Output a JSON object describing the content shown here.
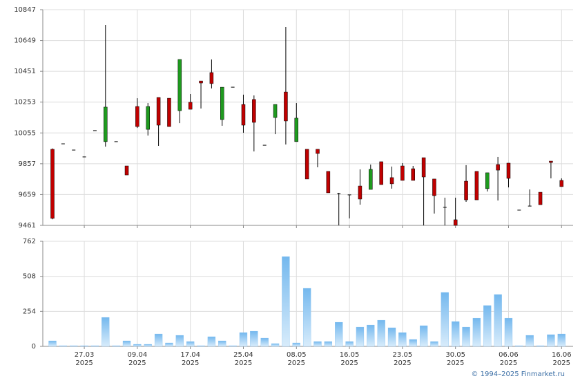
{
  "chart_data": [
    {
      "type": "candlestick",
      "up_color": "#1f9a1f",
      "down_color": "#c00000",
      "open": [
        9950,
        9985,
        9945,
        9901,
        10070,
        9999,
        9999,
        9843,
        10225,
        10078,
        10283,
        10278,
        10198,
        10252,
        10389,
        10443,
        10141,
        10349,
        10238,
        10270,
        9976,
        10154,
        10318,
        9999,
        9950,
        9950,
        9808,
        9665,
        9657,
        9714,
        9692,
        9870,
        9768,
        9843,
        9825,
        9896,
        9759,
        9577,
        9497,
        9745,
        9808,
        9697,
        9852,
        9861,
        9559,
        9585,
        9674,
        9874,
        9750
      ],
      "high": [
        9955,
        9985,
        9945,
        9901,
        10070,
        10749,
        9999,
        9843,
        10278,
        10247,
        10283,
        10278,
        10527,
        10305,
        10389,
        10527,
        10349,
        10349,
        10301,
        10296,
        9976,
        10238,
        10736,
        10247,
        9950,
        9950,
        9808,
        9670,
        9657,
        9821,
        9852,
        9870,
        9839,
        9861,
        9843,
        9896,
        9759,
        9639,
        9639,
        9848,
        9808,
        9799,
        9901,
        9861,
        9559,
        9692,
        9674,
        9874,
        9763
      ],
      "low": [
        9500,
        9985,
        9945,
        9901,
        10070,
        9967,
        9999,
        9785,
        10087,
        10038,
        9972,
        10096,
        10118,
        10207,
        10212,
        10341,
        10101,
        10349,
        10056,
        9936,
        9976,
        10047,
        9981,
        9999,
        9759,
        9834,
        9670,
        9461,
        9506,
        9594,
        9692,
        9723,
        9697,
        9750,
        9750,
        9461,
        9537,
        9461,
        9461,
        9612,
        9625,
        9679,
        9621,
        9705,
        9559,
        9585,
        9594,
        9763,
        9710
      ],
      "close": [
        9506,
        9985,
        9945,
        9901,
        10070,
        10221,
        9999,
        9785,
        10096,
        10225,
        10105,
        10096,
        10527,
        10207,
        10376,
        10372,
        10349,
        10349,
        10105,
        10123,
        9976,
        10238,
        10132,
        10150,
        9759,
        9923,
        9670,
        9665,
        9657,
        9630,
        9821,
        9723,
        9728,
        9750,
        9750,
        9772,
        9652,
        9577,
        9461,
        9625,
        9625,
        9799,
        9816,
        9763,
        9559,
        9585,
        9594,
        9865,
        9710
      ],
      "ylim": [
        9461,
        10847
      ],
      "yticks": [
        9461,
        9659,
        9857,
        10055,
        10253,
        10451,
        10649,
        10847
      ],
      "grid": true
    },
    {
      "type": "bar",
      "color": "#7dbdf0",
      "categories": [
        null,
        null,
        null,
        "27.03",
        null,
        null,
        null,
        null,
        "09.04",
        null,
        null,
        null,
        null,
        "17.04",
        null,
        null,
        null,
        null,
        "25.04",
        null,
        null,
        null,
        null,
        "08.05",
        null,
        null,
        null,
        null,
        "16.05",
        null,
        null,
        null,
        null,
        "23.05",
        null,
        null,
        null,
        null,
        "30.05",
        null,
        null,
        null,
        null,
        "06.06",
        null,
        null,
        null,
        null,
        "16.06"
      ],
      "category_years": [
        null,
        null,
        null,
        "2025",
        null,
        null,
        null,
        null,
        "2025",
        null,
        null,
        null,
        null,
        "2025",
        null,
        null,
        null,
        null,
        "2025",
        null,
        null,
        null,
        null,
        "2025",
        null,
        null,
        null,
        null,
        "2025",
        null,
        null,
        null,
        null,
        "2025",
        null,
        null,
        null,
        null,
        "2025",
        null,
        null,
        null,
        null,
        "2025",
        null,
        null,
        null,
        null,
        "2025"
      ],
      "values": [
        40,
        5,
        5,
        5,
        5,
        210,
        5,
        40,
        15,
        15,
        90,
        25,
        80,
        35,
        5,
        70,
        40,
        5,
        100,
        110,
        60,
        20,
        651,
        25,
        421,
        35,
        35,
        175,
        35,
        140,
        155,
        190,
        135,
        100,
        50,
        150,
        35,
        391,
        180,
        140,
        205,
        296,
        376,
        205,
        5,
        80,
        5,
        85,
        90
      ],
      "ylim": [
        0,
        762
      ],
      "yticks": [
        0,
        254,
        508,
        762
      ],
      "grid": true
    }
  ],
  "footer": "© 1994–2025 Finmarket.ru"
}
